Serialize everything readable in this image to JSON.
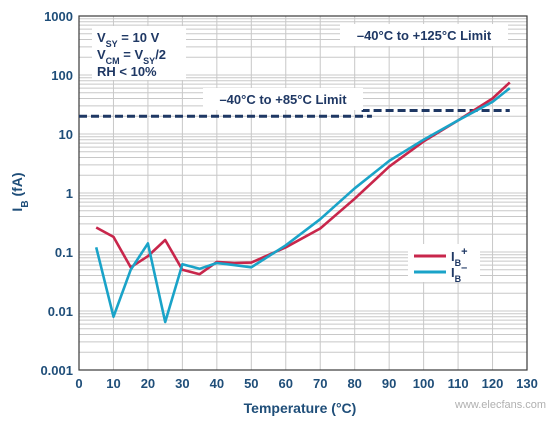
{
  "chart_data": {
    "type": "line",
    "title": "",
    "xlabel": "Temperature (°C)",
    "ylabel": "I_B (fA)",
    "xlim": [
      0,
      130
    ],
    "ylim": [
      0.001,
      1000
    ],
    "yscale": "log",
    "grid": true,
    "x_ticks": [
      "0",
      "10",
      "20",
      "30",
      "40",
      "50",
      "60",
      "70",
      "80",
      "90",
      "100",
      "110",
      "120",
      "130"
    ],
    "y_ticks": [
      "0.001",
      "0.01",
      "0.1",
      "1",
      "10",
      "100",
      "1000"
    ],
    "conditions": [
      {
        "main": "V",
        "sub": "SY",
        "rest": " = 10 V"
      },
      {
        "main": "V",
        "sub": "CM",
        "rest": " = V",
        "sub2": "SY",
        "rest2": "/2"
      },
      {
        "main": "RH < 10%"
      }
    ],
    "limits": [
      {
        "label": "–40°C to +85°C Limit",
        "value": 20,
        "x_end": 85
      },
      {
        "label": "–40°C to +125°C Limit",
        "value": 25,
        "x_start": 82,
        "x_end": 125
      }
    ],
    "series": [
      {
        "name": "I",
        "sub": "B",
        "suffix": "+",
        "color": "#c8264b",
        "points": [
          [
            5,
            0.26
          ],
          [
            10,
            0.18
          ],
          [
            15,
            0.055
          ],
          [
            20,
            0.085
          ],
          [
            25,
            0.16
          ],
          [
            30,
            0.05
          ],
          [
            35,
            0.042
          ],
          [
            40,
            0.068
          ],
          [
            45,
            0.065
          ],
          [
            50,
            0.066
          ],
          [
            60,
            0.12
          ],
          [
            70,
            0.25
          ],
          [
            80,
            0.8
          ],
          [
            90,
            2.8
          ],
          [
            100,
            7.5
          ],
          [
            110,
            17
          ],
          [
            120,
            40
          ],
          [
            125,
            75
          ]
        ]
      },
      {
        "name": "I",
        "sub": "B",
        "suffix": "–",
        "color": "#1aa3c8",
        "points": [
          [
            5,
            0.12
          ],
          [
            10,
            0.008
          ],
          [
            15,
            0.05
          ],
          [
            20,
            0.14
          ],
          [
            25,
            0.0065
          ],
          [
            30,
            0.062
          ],
          [
            35,
            0.052
          ],
          [
            40,
            0.065
          ],
          [
            45,
            0.06
          ],
          [
            50,
            0.055
          ],
          [
            60,
            0.13
          ],
          [
            70,
            0.36
          ],
          [
            80,
            1.2
          ],
          [
            90,
            3.5
          ],
          [
            100,
            8
          ],
          [
            110,
            17
          ],
          [
            120,
            35
          ],
          [
            125,
            60
          ]
        ]
      }
    ]
  },
  "watermark": "www.elecfans.com"
}
